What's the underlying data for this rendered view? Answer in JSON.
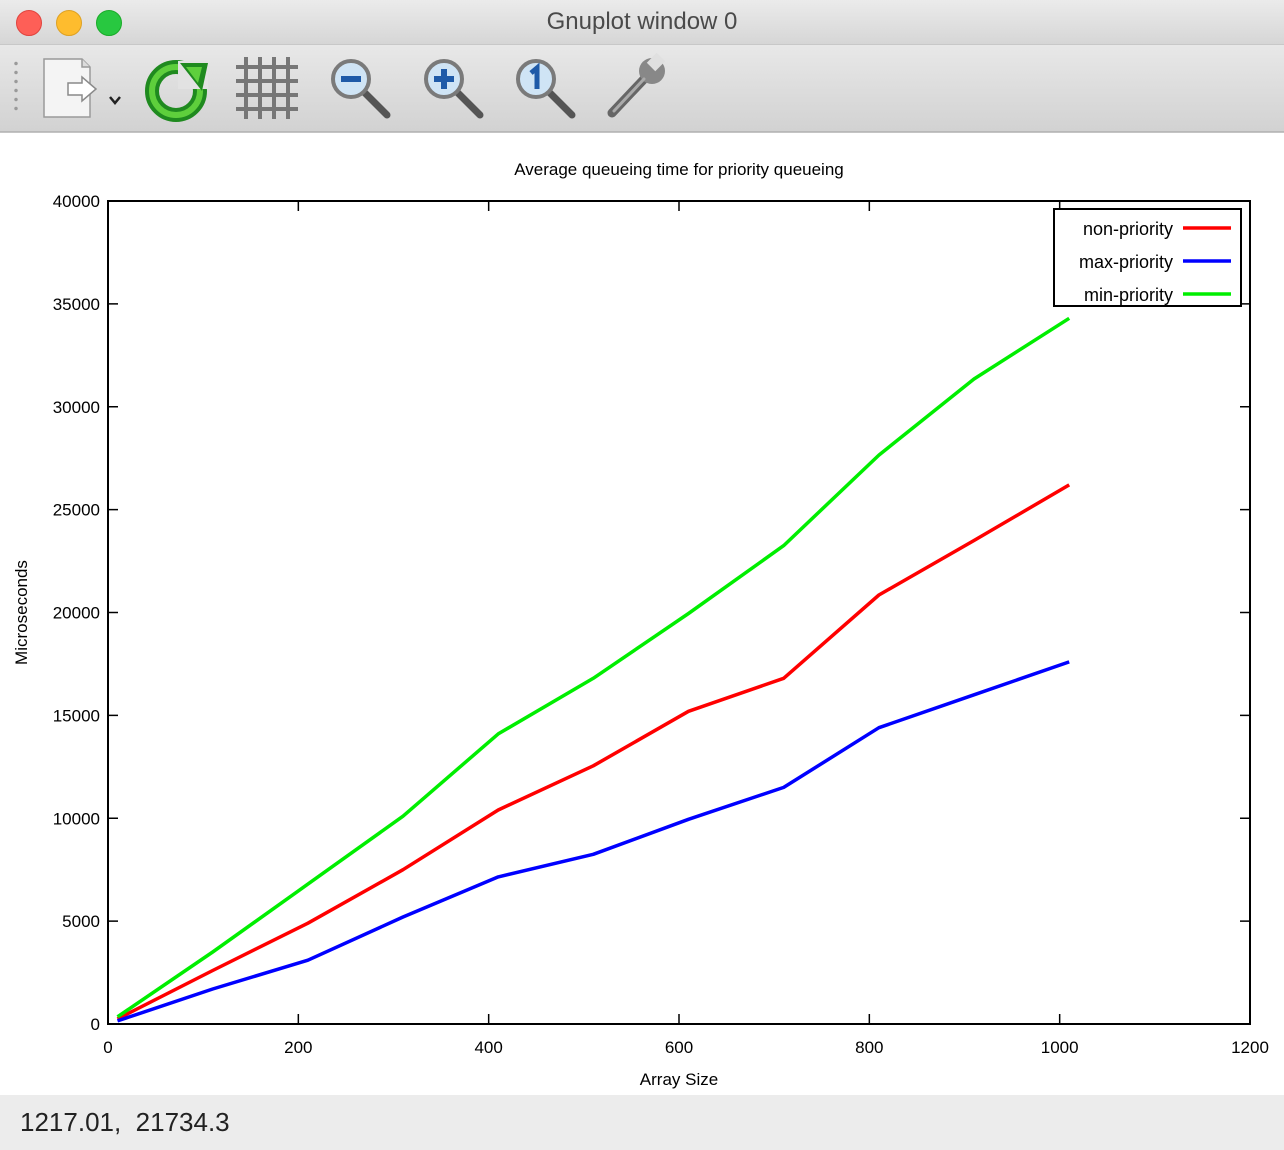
{
  "window": {
    "title": "Gnuplot window 0"
  },
  "toolbar": {
    "buttons": [
      {
        "name": "export-button",
        "icon": "export-document-icon"
      },
      {
        "name": "replot-button",
        "icon": "refresh-icon"
      },
      {
        "name": "grid-button",
        "icon": "grid-icon"
      },
      {
        "name": "zoom-out-button",
        "icon": "zoom-out-icon"
      },
      {
        "name": "zoom-in-button",
        "icon": "zoom-in-icon"
      },
      {
        "name": "zoom-reset-button",
        "icon": "zoom-one-icon"
      },
      {
        "name": "settings-button",
        "icon": "wrench-icon"
      }
    ]
  },
  "status": {
    "coords": "1217.01,  21734.3"
  },
  "chart_data": {
    "type": "line",
    "title": "Average queueing time for priority queueing",
    "xlabel": "Array Size",
    "ylabel": "Microseconds",
    "xlim": [
      0,
      1200
    ],
    "ylim": [
      0,
      40000
    ],
    "xticks": [
      0,
      200,
      400,
      600,
      800,
      1000,
      1200
    ],
    "yticks": [
      0,
      5000,
      10000,
      15000,
      20000,
      25000,
      30000,
      35000,
      40000
    ],
    "legend_position": "top-right",
    "grid": false,
    "series": [
      {
        "name": "non-priority",
        "color": "#ff0000",
        "x": [
          10,
          110,
          210,
          310,
          410,
          510,
          610,
          710,
          810,
          910,
          1010
        ],
        "y": [
          250,
          2600,
          4900,
          7500,
          10400,
          12550,
          15200,
          16800,
          20850,
          23500,
          26200
        ]
      },
      {
        "name": "max-priority",
        "color": "#0000ff",
        "x": [
          10,
          110,
          210,
          310,
          410,
          510,
          610,
          710,
          810,
          910,
          1010
        ],
        "y": [
          150,
          1700,
          3100,
          5200,
          7150,
          8250,
          9950,
          11500,
          14400,
          16000,
          17600
        ]
      },
      {
        "name": "min-priority",
        "color": "#00ee00",
        "x": [
          10,
          110,
          210,
          310,
          410,
          510,
          610,
          710,
          810,
          910,
          1010
        ],
        "y": [
          350,
          3500,
          6800,
          10100,
          14100,
          16800,
          19950,
          23250,
          27650,
          31350,
          34300
        ]
      }
    ]
  }
}
